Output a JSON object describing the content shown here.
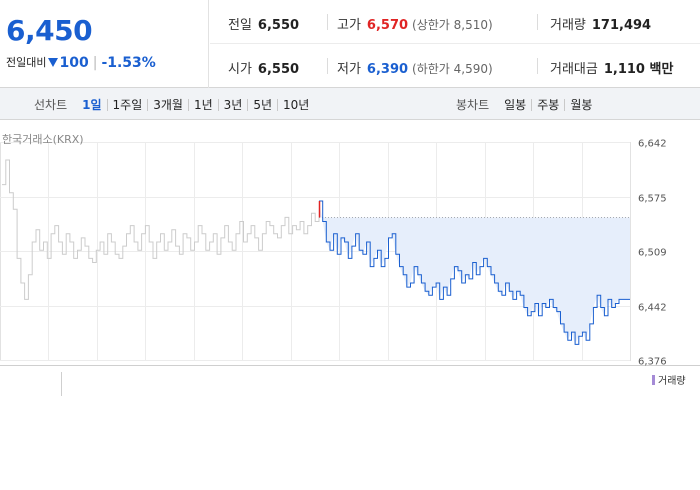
{
  "summary": {
    "current_price": "6,450",
    "change_label": "전일대비",
    "change_value": "100",
    "change_rate": "-1.53%",
    "stats": [
      {
        "label": "전일",
        "value": "6,550",
        "sub": ""
      },
      {
        "label": "고가",
        "value": "6,570",
        "sub": "(상한가 8,510)"
      },
      {
        "label": "거래량",
        "value": "171,494",
        "sub": ""
      },
      {
        "label": "시가",
        "value": "6,550",
        "sub": ""
      },
      {
        "label": "저가",
        "value": "6,390",
        "sub": "(하한가 4,590)"
      },
      {
        "label": "거래대금",
        "value": "1,110 백만",
        "sub": ""
      }
    ]
  },
  "toolbar": {
    "line_title": "선차트",
    "line_periods": [
      "1일",
      "1주일",
      "3개월",
      "1년",
      "3년",
      "5년",
      "10년"
    ],
    "candle_title": "봉차트",
    "candle_periods": [
      "일봉",
      "주봉",
      "월봉"
    ]
  },
  "chart": {
    "source_label": "한국거래소(KRX)",
    "volume_label": "거래량"
  },
  "colors": {
    "up": "#e02424",
    "down": "#1a5fd0",
    "prev_day_line": "#cccccc",
    "fill": "#e6eefb"
  },
  "chart_data": {
    "type": "line",
    "yticks": [
      6376,
      6442,
      6509,
      6575,
      6642
    ],
    "ytick_labels": [
      "6,376",
      "6,442",
      "6,509",
      "6,575",
      "6,642"
    ],
    "ylim": [
      6376,
      6642
    ],
    "reference_value": 6550,
    "series": [
      {
        "values": [
          6590,
          6620,
          6580,
          6560,
          6500,
          6470,
          6450,
          6480,
          6520,
          6535,
          6510,
          6520,
          6500,
          6530,
          6540,
          6520,
          6505,
          6530,
          6520,
          6500,
          6510,
          6525,
          6515,
          6500,
          6495,
          6510,
          6520,
          6505,
          6530,
          6520,
          6505,
          6500,
          6515,
          6530,
          6540,
          6520,
          6510,
          6530,
          6540,
          6520,
          6500,
          6520,
          6530,
          6510,
          6520,
          6535,
          6515,
          6505,
          6530,
          6525,
          6510,
          6520,
          6540,
          6530,
          6510,
          6520,
          6530,
          6505,
          6525,
          6540,
          6520,
          6510,
          6530,
          6545,
          6520,
          6530,
          6540,
          6525,
          6510,
          6530,
          6545,
          6540,
          6530,
          6525,
          6540,
          6550,
          6530,
          6540,
          6535,
          6545,
          6530,
          6540,
          6555,
          6545,
          6550
        ]
      },
      {
        "values": [
          6570,
          6545,
          6520,
          6510,
          6530,
          6505,
          6525,
          6520,
          6500,
          6515,
          6530,
          6510,
          6505,
          6520,
          6490,
          6500,
          6510,
          6490,
          6500,
          6525,
          6530,
          6505,
          6490,
          6480,
          6465,
          6470,
          6490,
          6480,
          6470,
          6460,
          6455,
          6465,
          6470,
          6450,
          6465,
          6455,
          6475,
          6490,
          6485,
          6470,
          6480,
          6475,
          6495,
          6480,
          6490,
          6500,
          6490,
          6480,
          6470,
          6460,
          6455,
          6470,
          6460,
          6450,
          6460,
          6455,
          6440,
          6430,
          6435,
          6445,
          6430,
          6445,
          6440,
          6450,
          6440,
          6435,
          6420,
          6410,
          6400,
          6410,
          6395,
          6405,
          6410,
          6400,
          6420,
          6440,
          6455,
          6440,
          6430,
          6450,
          6440,
          6445,
          6450,
          6450,
          6450,
          6450
        ]
      }
    ]
  }
}
